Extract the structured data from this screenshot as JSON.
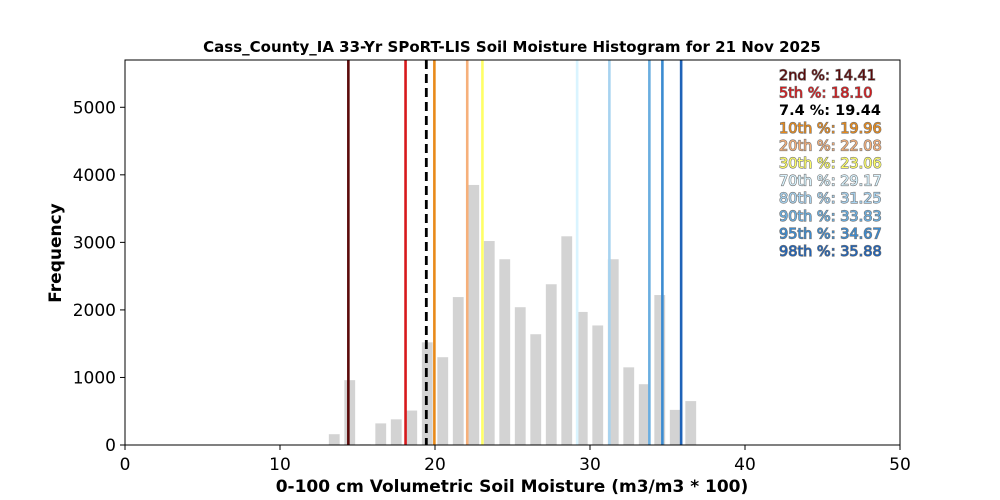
{
  "chart_data": {
    "type": "bar",
    "title": "Cass_County_IA 33-Yr SPoRT-LIS Soil Moisture Histogram for 21 Nov 2025",
    "xlabel": "0-100 cm Volumetric Soil Moisture (m3/m3 * 100)",
    "ylabel": "Frequency",
    "xlim": [
      0,
      50
    ],
    "ylim": [
      0,
      5700
    ],
    "xticks": [
      "0",
      "10",
      "20",
      "30",
      "40",
      "50"
    ],
    "yticks": [
      "0",
      "1000",
      "2000",
      "3000",
      "4000",
      "5000"
    ],
    "bar_color": "#d3d3d3",
    "bar_width": 0.7,
    "bins": [
      {
        "x": 13.5,
        "y": 160
      },
      {
        "x": 14.5,
        "y": 960
      },
      {
        "x": 15.5,
        "y": 10
      },
      {
        "x": 16.5,
        "y": 320
      },
      {
        "x": 17.5,
        "y": 380
      },
      {
        "x": 18.5,
        "y": 510
      },
      {
        "x": 19.5,
        "y": 1520
      },
      {
        "x": 20.5,
        "y": 1300
      },
      {
        "x": 21.5,
        "y": 2190
      },
      {
        "x": 22.5,
        "y": 3850
      },
      {
        "x": 23.5,
        "y": 3020
      },
      {
        "x": 24.5,
        "y": 2750
      },
      {
        "x": 25.5,
        "y": 2040
      },
      {
        "x": 26.5,
        "y": 1640
      },
      {
        "x": 27.5,
        "y": 2380
      },
      {
        "x": 28.5,
        "y": 3090
      },
      {
        "x": 29.5,
        "y": 1970
      },
      {
        "x": 30.5,
        "y": 1770
      },
      {
        "x": 31.5,
        "y": 2750
      },
      {
        "x": 32.5,
        "y": 1150
      },
      {
        "x": 33.5,
        "y": 900
      },
      {
        "x": 34.5,
        "y": 2220
      },
      {
        "x": 35.5,
        "y": 520
      },
      {
        "x": 36.5,
        "y": 650
      }
    ],
    "current": {
      "label": "7.4 %: 19.44",
      "value": 19.44,
      "color": "#000000",
      "style": "dashed"
    },
    "percentiles": [
      {
        "label": "2nd %: 14.41",
        "value": 14.41,
        "color": "#5c0a0a"
      },
      {
        "label": "5th %: 18.10",
        "value": 18.1,
        "color": "#d7191c"
      },
      {
        "label": "10th %: 19.96",
        "value": 19.96,
        "color": "#e88a1a"
      },
      {
        "label": "20th %: 22.08",
        "value": 22.08,
        "color": "#f6b07a"
      },
      {
        "label": "30th %: 23.06",
        "value": 23.06,
        "color": "#ffff66"
      },
      {
        "label": "70th %: 29.17",
        "value": 29.17,
        "color": "#d9f4ff"
      },
      {
        "label": "80th %: 31.25",
        "value": 31.25,
        "color": "#a7d3f0"
      },
      {
        "label": "90th %: 33.83",
        "value": 33.83,
        "color": "#6aaee0"
      },
      {
        "label": "95th %: 34.67",
        "value": 34.67,
        "color": "#3b8bd1"
      },
      {
        "label": "98th %: 35.88",
        "value": 35.88,
        "color": "#1f63b8"
      }
    ],
    "legend_order": [
      "2nd %: 14.41",
      "5th %: 18.10",
      "7.4 %: 19.44",
      "10th %: 19.96",
      "20th %: 22.08",
      "30th %: 23.06",
      "70th %: 29.17",
      "80th %: 31.25",
      "90th %: 33.83",
      "95th %: 34.67",
      "98th %: 35.88"
    ],
    "legend_position": "top-right",
    "grid": false
  }
}
